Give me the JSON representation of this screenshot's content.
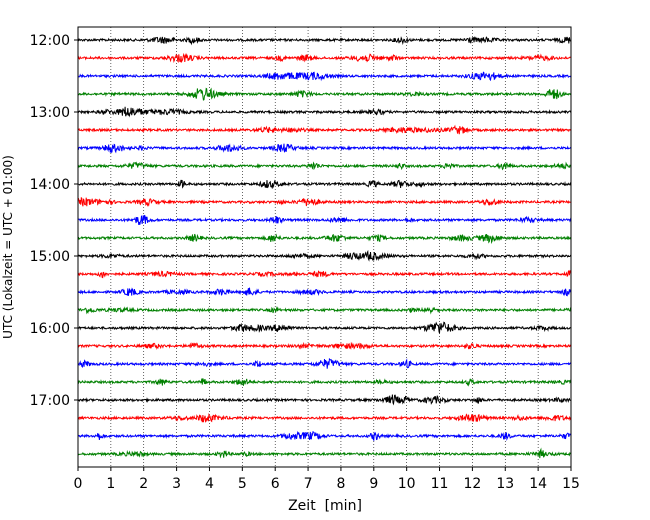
{
  "chart_data": {
    "type": "line",
    "title": "",
    "xlabel": "Zeit  [min]",
    "ylabel": "UTC (Lokalzeit = UTC + 01:00)",
    "xlim": [
      0,
      15
    ],
    "x_ticks": [
      0,
      1,
      2,
      3,
      4,
      5,
      6,
      7,
      8,
      9,
      10,
      11,
      12,
      13,
      14,
      15
    ],
    "y_tick_labels": [
      "12:00",
      "13:00",
      "14:00",
      "15:00",
      "16:00",
      "17:00"
    ],
    "y_tick_hours": [
      12,
      13,
      14,
      15,
      16,
      17
    ],
    "grid": "vertical dotted lines at each minute",
    "legend": "none",
    "trace_interval_minutes": 15,
    "series": [
      {
        "start": "12:00",
        "color": "#000000"
      },
      {
        "start": "12:15",
        "color": "#ff0000"
      },
      {
        "start": "12:30",
        "color": "#0000ff"
      },
      {
        "start": "12:45",
        "color": "#008000"
      },
      {
        "start": "13:00",
        "color": "#000000"
      },
      {
        "start": "13:15",
        "color": "#ff0000"
      },
      {
        "start": "13:30",
        "color": "#0000ff"
      },
      {
        "start": "13:45",
        "color": "#008000"
      },
      {
        "start": "14:00",
        "color": "#000000"
      },
      {
        "start": "14:15",
        "color": "#ff0000"
      },
      {
        "start": "14:30",
        "color": "#0000ff"
      },
      {
        "start": "14:45",
        "color": "#008000"
      },
      {
        "start": "15:00",
        "color": "#000000"
      },
      {
        "start": "15:15",
        "color": "#ff0000"
      },
      {
        "start": "15:30",
        "color": "#0000ff"
      },
      {
        "start": "15:45",
        "color": "#008000"
      },
      {
        "start": "16:00",
        "color": "#000000"
      },
      {
        "start": "16:15",
        "color": "#ff0000"
      },
      {
        "start": "16:30",
        "color": "#0000ff"
      },
      {
        "start": "16:45",
        "color": "#008000"
      },
      {
        "start": "17:00",
        "color": "#000000"
      },
      {
        "start": "17:15",
        "color": "#ff0000"
      },
      {
        "start": "17:30",
        "color": "#0000ff"
      },
      {
        "start": "17:45",
        "color": "#008000"
      }
    ]
  }
}
